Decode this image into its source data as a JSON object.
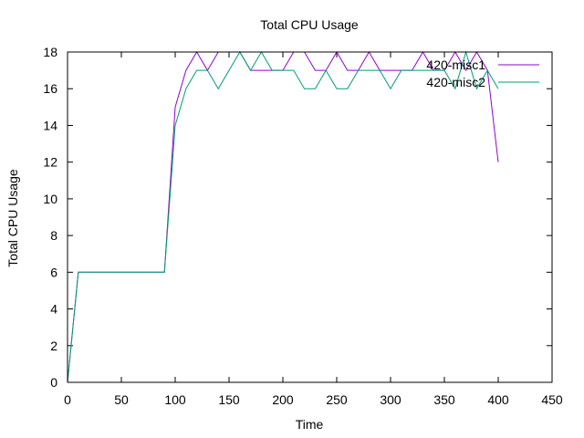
{
  "chart_data": {
    "type": "line",
    "title": "Total CPU Usage",
    "xlabel": "Time",
    "ylabel": "Total CPU Usage",
    "xlim": [
      0,
      450
    ],
    "ylim": [
      0,
      18
    ],
    "xticks": [
      0,
      50,
      100,
      150,
      200,
      250,
      300,
      350,
      400,
      450
    ],
    "yticks": [
      0,
      2,
      4,
      6,
      8,
      10,
      12,
      14,
      16,
      18
    ],
    "grid": false,
    "legend_position": "top-right",
    "series": [
      {
        "name": "420-misc1",
        "color": "#9400d3",
        "points": [
          [
            0,
            0
          ],
          [
            10,
            6
          ],
          [
            20,
            6
          ],
          [
            30,
            6
          ],
          [
            40,
            6
          ],
          [
            50,
            6
          ],
          [
            60,
            6
          ],
          [
            70,
            6
          ],
          [
            80,
            6
          ],
          [
            90,
            6
          ],
          [
            100,
            15
          ],
          [
            110,
            17
          ],
          [
            120,
            18
          ],
          [
            130,
            17
          ],
          [
            140,
            18
          ],
          [
            150,
            18
          ],
          [
            160,
            18
          ],
          [
            170,
            17
          ],
          [
            180,
            17
          ],
          [
            190,
            17
          ],
          [
            200,
            17
          ],
          [
            210,
            18
          ],
          [
            220,
            18
          ],
          [
            230,
            17
          ],
          [
            240,
            17
          ],
          [
            250,
            18
          ],
          [
            260,
            17
          ],
          [
            270,
            17
          ],
          [
            280,
            18
          ],
          [
            290,
            17
          ],
          [
            300,
            17
          ],
          [
            310,
            17
          ],
          [
            320,
            17
          ],
          [
            330,
            18
          ],
          [
            340,
            17
          ],
          [
            350,
            17
          ],
          [
            360,
            18
          ],
          [
            370,
            17
          ],
          [
            380,
            18
          ],
          [
            390,
            17
          ],
          [
            400,
            12
          ]
        ]
      },
      {
        "name": "420-misc2",
        "color": "#009e73",
        "points": [
          [
            0,
            0
          ],
          [
            10,
            6
          ],
          [
            20,
            6
          ],
          [
            30,
            6
          ],
          [
            40,
            6
          ],
          [
            50,
            6
          ],
          [
            60,
            6
          ],
          [
            70,
            6
          ],
          [
            80,
            6
          ],
          [
            90,
            6
          ],
          [
            100,
            14
          ],
          [
            110,
            16
          ],
          [
            120,
            17
          ],
          [
            130,
            17
          ],
          [
            140,
            16
          ],
          [
            150,
            17
          ],
          [
            160,
            18
          ],
          [
            170,
            17
          ],
          [
            180,
            18
          ],
          [
            190,
            17
          ],
          [
            200,
            17
          ],
          [
            210,
            17
          ],
          [
            220,
            16
          ],
          [
            230,
            16
          ],
          [
            240,
            17
          ],
          [
            250,
            16
          ],
          [
            260,
            16
          ],
          [
            270,
            17
          ],
          [
            280,
            17
          ],
          [
            290,
            17
          ],
          [
            300,
            16
          ],
          [
            310,
            17
          ],
          [
            320,
            17
          ],
          [
            330,
            17
          ],
          [
            340,
            17
          ],
          [
            350,
            17
          ],
          [
            360,
            16
          ],
          [
            370,
            18
          ],
          [
            380,
            16
          ],
          [
            390,
            17
          ],
          [
            400,
            16
          ]
        ]
      }
    ]
  }
}
